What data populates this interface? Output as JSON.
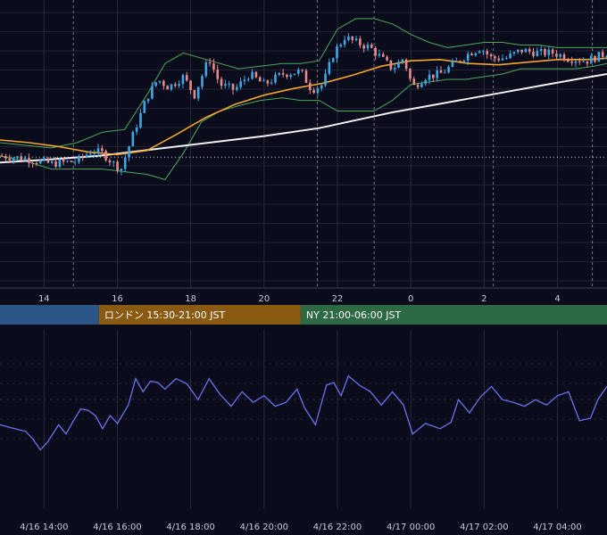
{
  "sessions": [
    {
      "label": "",
      "color": "#2b5587",
      "start": 11.0,
      "end": 15.5
    },
    {
      "label": "ロンドン 15:30-21:00 JST",
      "color": "#8a5a12",
      "start": 15.5,
      "end": 21.0
    },
    {
      "label": "NY 21:00-06:00 JST",
      "color": "#2d6a44",
      "start": 21.0,
      "end": 30.5
    }
  ],
  "chart_data": [
    {
      "type": "candlestick",
      "title": "",
      "xlabel": "",
      "ylabel": "",
      "x_range_hours": [
        12.8,
        29.35
      ],
      "y_range": [
        0,
        100
      ],
      "grid": true,
      "x_tick_labels": [
        "14",
        "16",
        "18",
        "20",
        "22",
        "0",
        "2",
        "4"
      ],
      "x_tick_hours": [
        14,
        16,
        18,
        20,
        22,
        24,
        26,
        28
      ],
      "event_lines_hours": [
        14.8,
        21.45,
        23.0,
        26.25,
        28.95
      ],
      "reference_level": 44.5,
      "colors": {
        "up": "#3da8e8",
        "down": "#e88a8a",
        "sma_short": "#f4a62a",
        "sma_long": "#f0f0f0",
        "bollinger": "#4caa5a"
      },
      "price_path": [
        [
          12.8,
          45
        ],
        [
          13.5,
          44
        ],
        [
          14.2,
          42
        ],
        [
          14.9,
          43
        ],
        [
          15.3,
          47
        ],
        [
          15.6,
          46
        ],
        [
          15.9,
          42
        ],
        [
          16.1,
          40
        ],
        [
          16.4,
          52
        ],
        [
          16.8,
          67
        ],
        [
          17.1,
          74
        ],
        [
          17.4,
          71
        ],
        [
          17.8,
          75
        ],
        [
          18.1,
          68
        ],
        [
          18.5,
          82
        ],
        [
          18.8,
          72
        ],
        [
          19.2,
          70
        ],
        [
          19.6,
          76
        ],
        [
          20.0,
          72
        ],
        [
          20.5,
          76
        ],
        [
          21.0,
          77
        ],
        [
          21.3,
          70
        ],
        [
          21.6,
          72
        ],
        [
          21.9,
          84
        ],
        [
          22.2,
          90
        ],
        [
          22.5,
          88
        ],
        [
          22.9,
          86
        ],
        [
          23.2,
          82
        ],
        [
          23.5,
          78
        ],
        [
          23.8,
          82
        ],
        [
          24.05,
          71
        ],
        [
          24.4,
          75
        ],
        [
          24.8,
          76
        ],
        [
          25.2,
          80
        ],
        [
          25.6,
          84
        ],
        [
          25.9,
          86
        ],
        [
          26.2,
          82
        ],
        [
          26.6,
          82
        ],
        [
          27.0,
          85
        ],
        [
          27.5,
          84
        ],
        [
          27.9,
          84
        ],
        [
          28.3,
          82
        ],
        [
          28.8,
          81
        ],
        [
          29.35,
          84
        ]
      ],
      "sma_short": [
        [
          12.8,
          51
        ],
        [
          13.6,
          50
        ],
        [
          14.4,
          48.5
        ],
        [
          15.2,
          46.5
        ],
        [
          16.0,
          45.5
        ],
        [
          16.8,
          47
        ],
        [
          17.6,
          53
        ],
        [
          18.4,
          59.5
        ],
        [
          19.2,
          64.5
        ],
        [
          20.0,
          68
        ],
        [
          20.8,
          70.5
        ],
        [
          21.6,
          72.5
        ],
        [
          22.4,
          75.5
        ],
        [
          23.2,
          79
        ],
        [
          24.0,
          81
        ],
        [
          24.8,
          81.5
        ],
        [
          25.6,
          80
        ],
        [
          26.4,
          79.5
        ],
        [
          27.2,
          80.5
        ],
        [
          28.0,
          81.5
        ],
        [
          28.8,
          81.5
        ],
        [
          29.35,
          82
        ]
      ],
      "sma_long": [
        [
          12.8,
          42.5
        ],
        [
          14.0,
          43.5
        ],
        [
          15.5,
          45
        ],
        [
          17.0,
          47.5
        ],
        [
          18.5,
          50
        ],
        [
          20.0,
          52.5
        ],
        [
          21.5,
          55.5
        ],
        [
          22.5,
          58.5
        ],
        [
          23.5,
          61.5
        ],
        [
          24.5,
          64
        ],
        [
          25.5,
          66.5
        ],
        [
          26.5,
          69
        ],
        [
          27.5,
          71.5
        ],
        [
          28.5,
          74
        ],
        [
          29.35,
          76
        ]
      ],
      "bb_upper": [
        [
          12.8,
          50
        ],
        [
          13.5,
          49
        ],
        [
          14.2,
          48
        ],
        [
          14.9,
          50
        ],
        [
          15.6,
          54
        ],
        [
          16.2,
          55
        ],
        [
          16.8,
          68
        ],
        [
          17.3,
          80
        ],
        [
          17.8,
          84
        ],
        [
          18.3,
          82
        ],
        [
          18.8,
          80
        ],
        [
          19.3,
          78
        ],
        [
          19.9,
          79
        ],
        [
          20.5,
          80
        ],
        [
          21.0,
          80
        ],
        [
          21.5,
          81
        ],
        [
          22.0,
          93
        ],
        [
          22.5,
          97
        ],
        [
          23.0,
          97
        ],
        [
          23.5,
          95
        ],
        [
          24.0,
          91
        ],
        [
          24.5,
          88
        ],
        [
          25.0,
          86
        ],
        [
          25.5,
          87
        ],
        [
          26.0,
          88
        ],
        [
          26.5,
          88
        ],
        [
          27.0,
          87
        ],
        [
          27.5,
          87
        ],
        [
          28.0,
          86
        ],
        [
          28.5,
          86
        ],
        [
          29.0,
          86
        ],
        [
          29.35,
          86
        ]
      ],
      "bb_lower": [
        [
          12.8,
          45
        ],
        [
          13.5,
          43
        ],
        [
          14.2,
          40
        ],
        [
          14.9,
          40
        ],
        [
          15.6,
          40
        ],
        [
          16.2,
          39
        ],
        [
          16.8,
          38
        ],
        [
          17.3,
          36
        ],
        [
          17.8,
          46
        ],
        [
          18.3,
          58
        ],
        [
          18.8,
          62
        ],
        [
          19.3,
          64
        ],
        [
          19.9,
          66
        ],
        [
          20.5,
          67
        ],
        [
          21.0,
          66
        ],
        [
          21.5,
          66
        ],
        [
          22.0,
          62
        ],
        [
          22.5,
          62
        ],
        [
          23.0,
          62
        ],
        [
          23.5,
          66
        ],
        [
          24.0,
          72
        ],
        [
          24.5,
          73
        ],
        [
          25.0,
          74
        ],
        [
          25.5,
          74
        ],
        [
          26.0,
          75
        ],
        [
          26.5,
          76
        ],
        [
          27.0,
          78
        ],
        [
          27.5,
          78
        ],
        [
          28.0,
          78
        ],
        [
          28.5,
          78
        ],
        [
          29.0,
          79
        ],
        [
          29.35,
          80
        ]
      ]
    },
    {
      "type": "line",
      "title": "",
      "xlabel": "",
      "ylabel": "",
      "x_range_hours": [
        12.8,
        29.35
      ],
      "y_range": [
        0,
        100
      ],
      "grid": true,
      "line_color": "#6c70ee",
      "x_tick_labels": [
        "4/16 14:00",
        "4/16 16:00",
        "4/16 18:00",
        "4/16 20:00",
        "4/16 22:00",
        "4/17 00:00",
        "4/17 02:00",
        "4/17 04:00"
      ],
      "x_tick_hours": [
        14,
        16,
        18,
        20,
        22,
        24,
        26,
        28
      ],
      "values": [
        [
          12.8,
          43
        ],
        [
          13.2,
          40
        ],
        [
          13.5,
          38
        ],
        [
          13.7,
          32
        ],
        [
          13.9,
          24
        ],
        [
          14.1,
          30
        ],
        [
          14.4,
          43
        ],
        [
          14.6,
          36
        ],
        [
          14.8,
          46
        ],
        [
          15.0,
          55
        ],
        [
          15.2,
          54
        ],
        [
          15.4,
          50
        ],
        [
          15.6,
          40
        ],
        [
          15.8,
          50
        ],
        [
          16.0,
          44
        ],
        [
          16.3,
          58
        ],
        [
          16.5,
          78
        ],
        [
          16.7,
          68
        ],
        [
          16.9,
          76
        ],
        [
          17.1,
          75
        ],
        [
          17.3,
          70
        ],
        [
          17.6,
          78
        ],
        [
          17.9,
          74
        ],
        [
          18.2,
          62
        ],
        [
          18.5,
          78
        ],
        [
          18.8,
          66
        ],
        [
          19.1,
          57
        ],
        [
          19.4,
          68
        ],
        [
          19.7,
          60
        ],
        [
          20.0,
          65
        ],
        [
          20.3,
          57
        ],
        [
          20.6,
          60
        ],
        [
          20.9,
          70
        ],
        [
          21.1,
          56
        ],
        [
          21.4,
          43
        ],
        [
          21.7,
          73
        ],
        [
          21.9,
          75
        ],
        [
          22.1,
          65
        ],
        [
          22.3,
          80
        ],
        [
          22.6,
          73
        ],
        [
          22.9,
          68
        ],
        [
          23.2,
          58
        ],
        [
          23.5,
          68
        ],
        [
          23.8,
          58
        ],
        [
          24.05,
          36
        ],
        [
          24.4,
          44
        ],
        [
          24.8,
          40
        ],
        [
          25.1,
          45
        ],
        [
          25.3,
          62
        ],
        [
          25.6,
          52
        ],
        [
          25.9,
          64
        ],
        [
          26.2,
          72
        ],
        [
          26.5,
          62
        ],
        [
          26.8,
          60
        ],
        [
          27.1,
          57
        ],
        [
          27.4,
          62
        ],
        [
          27.7,
          58
        ],
        [
          28.0,
          65
        ],
        [
          28.3,
          68
        ],
        [
          28.6,
          46
        ],
        [
          28.9,
          48
        ],
        [
          29.1,
          62
        ],
        [
          29.35,
          72
        ]
      ]
    }
  ]
}
